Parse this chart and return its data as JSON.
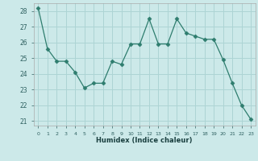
{
  "x": [
    0,
    1,
    2,
    3,
    4,
    5,
    6,
    7,
    8,
    9,
    10,
    11,
    12,
    13,
    14,
    15,
    16,
    17,
    18,
    19,
    20,
    21,
    22,
    23
  ],
  "y": [
    28.2,
    25.6,
    24.8,
    24.8,
    24.1,
    23.1,
    23.4,
    23.4,
    24.8,
    24.6,
    25.9,
    25.9,
    27.5,
    25.9,
    25.9,
    27.5,
    26.6,
    26.4,
    26.2,
    26.2,
    24.9,
    23.4,
    22.0,
    21.1
  ],
  "line_color": "#2e7d6e",
  "marker": "D",
  "marker_size": 2.5,
  "bg_color": "#cce9e9",
  "grid_color": "#add4d4",
  "xlabel": "Humidex (Indice chaleur)",
  "ylim": [
    20.7,
    28.5
  ],
  "xlim": [
    -0.5,
    23.5
  ],
  "yticks": [
    21,
    22,
    23,
    24,
    25,
    26,
    27,
    28
  ],
  "xticks": [
    0,
    1,
    2,
    3,
    4,
    5,
    6,
    7,
    8,
    9,
    10,
    11,
    12,
    13,
    14,
    15,
    16,
    17,
    18,
    19,
    20,
    21,
    22,
    23
  ]
}
